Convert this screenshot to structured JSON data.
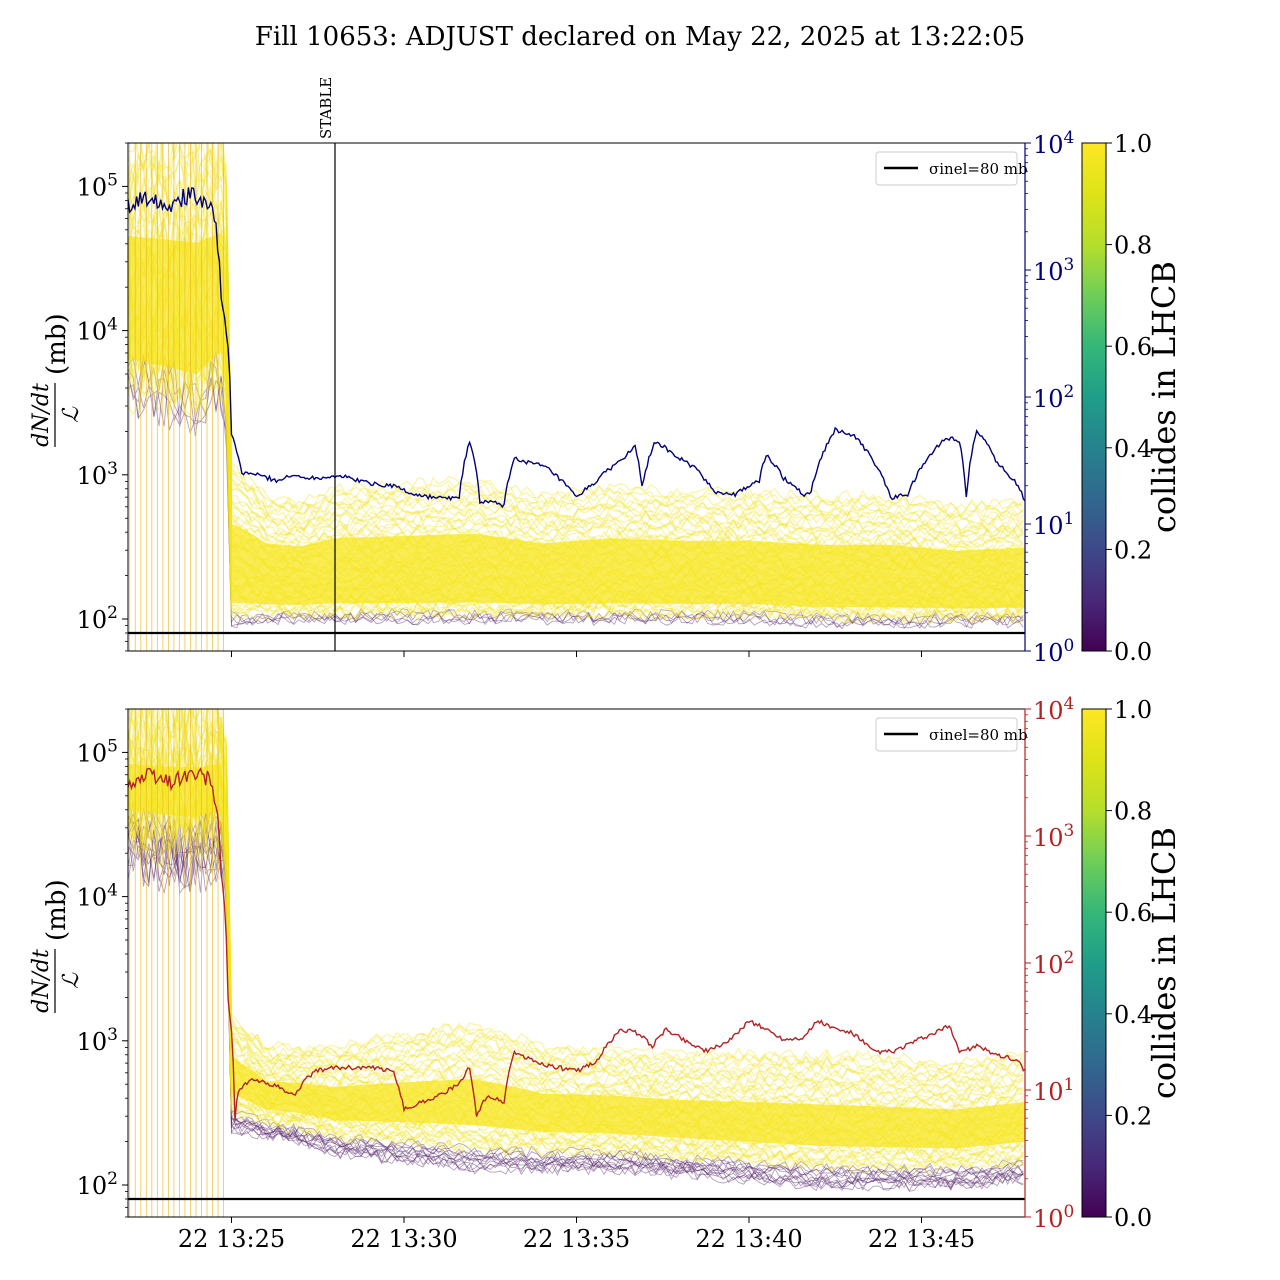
{
  "chart_data": [
    {
      "panel": "top",
      "type": "line",
      "title": "Fill 10653: ADJUST declared on May 22, 2025 at 13:22:05",
      "x_axis": {
        "type": "time",
        "range": [
          "22 13:22",
          "22 13:48"
        ],
        "tick_labels": []
      },
      "y_left": {
        "label": "dN/dt / ℒ (mb)",
        "scale": "log",
        "ylim": [
          60,
          200000
        ],
        "ticks": [
          100,
          1000,
          10000,
          100000
        ],
        "tick_labels": [
          "10²",
          "10³",
          "10⁴",
          "10⁵"
        ]
      },
      "y_right": {
        "scale": "log",
        "ylim": [
          1,
          10000
        ],
        "ticks": [
          1,
          10,
          100,
          1000,
          10000
        ],
        "tick_labels": [
          "10⁰",
          "10¹",
          "10²",
          "10³",
          "10⁴"
        ],
        "color": "#00007a"
      },
      "annotation": {
        "text": "STABLE",
        "x": "22 13:28"
      },
      "legend": {
        "entries": [
          "σinel=80 mb"
        ],
        "placement": "top-right"
      },
      "reference_line": {
        "y": 80
      },
      "series": [
        {
          "axis": "right",
          "color": "#00007a",
          "x": [
            22.0,
            22.6,
            23.2,
            23.8,
            24.4,
            24.7,
            25.0,
            25.3,
            25.6,
            26.3,
            26.8,
            27.4,
            28.1,
            29.0,
            29.7,
            30.3,
            31.0,
            31.6,
            31.9,
            32.2,
            32.4,
            32.9,
            33.2,
            33.7,
            34.1,
            35.0,
            35.6,
            36.3,
            36.7,
            36.9,
            37.3,
            37.8,
            38.4,
            39.0,
            39.6,
            40.3,
            40.5,
            41.0,
            41.6,
            41.8,
            42.5,
            43.0,
            43.5,
            44.1,
            44.6,
            45.2,
            45.7,
            46.1,
            46.3,
            46.6,
            47.2,
            47.8,
            48.0
          ],
          "y": [
            3200,
            3800,
            3300,
            3900,
            3400,
            600,
            50,
            25,
            25,
            22,
            24,
            23,
            24,
            21,
            20,
            17,
            16,
            16,
            45,
            15,
            15,
            14,
            33,
            30,
            28,
            16,
            22,
            32,
            40,
            20,
            45,
            35,
            28,
            18,
            17,
            22,
            35,
            23,
            17,
            18,
            55,
            50,
            35,
            16,
            17,
            33,
            48,
            45,
            16,
            55,
            30,
            20,
            15
          ]
        },
        {
          "axis": "left",
          "name": "sigma_inel",
          "color": "#000000",
          "x": [
            22.0,
            48.0
          ],
          "y": [
            80,
            80
          ]
        }
      ],
      "band": {
        "description": "per-bunch traces coloured by collides in LHCB",
        "x": [
          22.0,
          23.0,
          24.0,
          24.7,
          25.0,
          26.0,
          27.0,
          28.0,
          30.0,
          32.0,
          34.0,
          36.0,
          38.0,
          40.0,
          42.0,
          44.0,
          46.0,
          48.0
        ],
        "low": [
          4000,
          3500,
          3000,
          4500,
          95,
          100,
          100,
          100,
          100,
          100,
          100,
          100,
          100,
          100,
          95,
          95,
          95,
          95
        ],
        "high": [
          200000,
          200000,
          200000,
          200000,
          1200,
          700,
          650,
          800,
          850,
          900,
          700,
          800,
          750,
          750,
          700,
          700,
          600,
          650
        ]
      }
    },
    {
      "panel": "bottom",
      "type": "line",
      "x_axis": {
        "type": "time",
        "range": [
          "22 13:22",
          "22 13:48"
        ],
        "tick_labels": [
          "22 13:25",
          "22 13:30",
          "22 13:35",
          "22 13:40",
          "22 13:45"
        ]
      },
      "y_left": {
        "label": "dN/dt / ℒ (mb)",
        "scale": "log",
        "ylim": [
          60,
          200000
        ],
        "ticks": [
          100,
          1000,
          10000,
          100000
        ],
        "tick_labels": [
          "10²",
          "10³",
          "10⁴",
          "10⁵"
        ]
      },
      "y_right": {
        "scale": "log",
        "ylim": [
          1,
          10000
        ],
        "ticks": [
          1,
          10,
          100,
          1000,
          10000
        ],
        "tick_labels": [
          "10⁰",
          "10¹",
          "10²",
          "10³",
          "10⁴"
        ],
        "color": "#b22222"
      },
      "legend": {
        "entries": [
          "σinel=80 mb"
        ],
        "placement": "top-right"
      },
      "reference_line": {
        "y": 80
      },
      "series": [
        {
          "axis": "right",
          "color": "#b22222",
          "x": [
            22.0,
            22.6,
            23.2,
            23.8,
            24.4,
            24.7,
            24.9,
            25.1,
            25.2,
            25.6,
            26.2,
            26.8,
            27.4,
            28.0,
            29.0,
            29.7,
            30.0,
            30.5,
            31.0,
            31.6,
            31.9,
            32.1,
            32.4,
            32.9,
            33.2,
            33.5,
            34.0,
            35.0,
            35.6,
            36.3,
            36.8,
            37.2,
            37.6,
            38.2,
            38.8,
            39.5,
            40.0,
            40.5,
            41.0,
            41.6,
            42.0,
            42.5,
            43.0,
            43.6,
            44.2,
            44.8,
            45.4,
            45.8,
            46.1,
            46.6,
            47.2,
            47.8,
            48.0
          ],
          "y": [
            2600,
            3000,
            2700,
            3100,
            2800,
            500,
            50,
            6,
            10,
            12,
            11,
            9,
            14,
            15,
            15,
            14,
            7,
            8,
            9,
            11,
            15,
            6,
            9,
            8,
            20,
            18,
            16,
            14,
            17,
            30,
            28,
            22,
            30,
            24,
            20,
            25,
            35,
            30,
            25,
            26,
            35,
            30,
            28,
            20,
            20,
            24,
            28,
            32,
            20,
            22,
            19,
            17,
            14
          ]
        },
        {
          "axis": "left",
          "name": "sigma_inel",
          "color": "#000000",
          "x": [
            22.0,
            48.0
          ],
          "y": [
            80,
            80
          ]
        }
      ],
      "band": {
        "description": "per-bunch traces coloured by collides in LHCB",
        "x": [
          22.0,
          23.0,
          24.0,
          24.7,
          25.0,
          26.0,
          27.0,
          28.0,
          30.0,
          32.0,
          34.0,
          36.0,
          38.0,
          40.0,
          42.0,
          44.0,
          46.0,
          48.0
        ],
        "low": [
          20000,
          18000,
          17000,
          20000,
          250,
          220,
          200,
          170,
          150,
          130,
          130,
          130,
          120,
          110,
          100,
          100,
          100,
          110
        ],
        "high": [
          200000,
          200000,
          200000,
          200000,
          1500,
          900,
          900,
          900,
          1100,
          1300,
          900,
          850,
          800,
          800,
          800,
          750,
          700,
          800
        ]
      }
    }
  ],
  "colorbar": {
    "label": "collides in LHCB",
    "range": [
      0.0,
      1.0
    ],
    "tick_labels": [
      "0.0",
      "0.2",
      "0.4",
      "0.6",
      "0.8",
      "1.0"
    ],
    "colormap": "viridis"
  }
}
